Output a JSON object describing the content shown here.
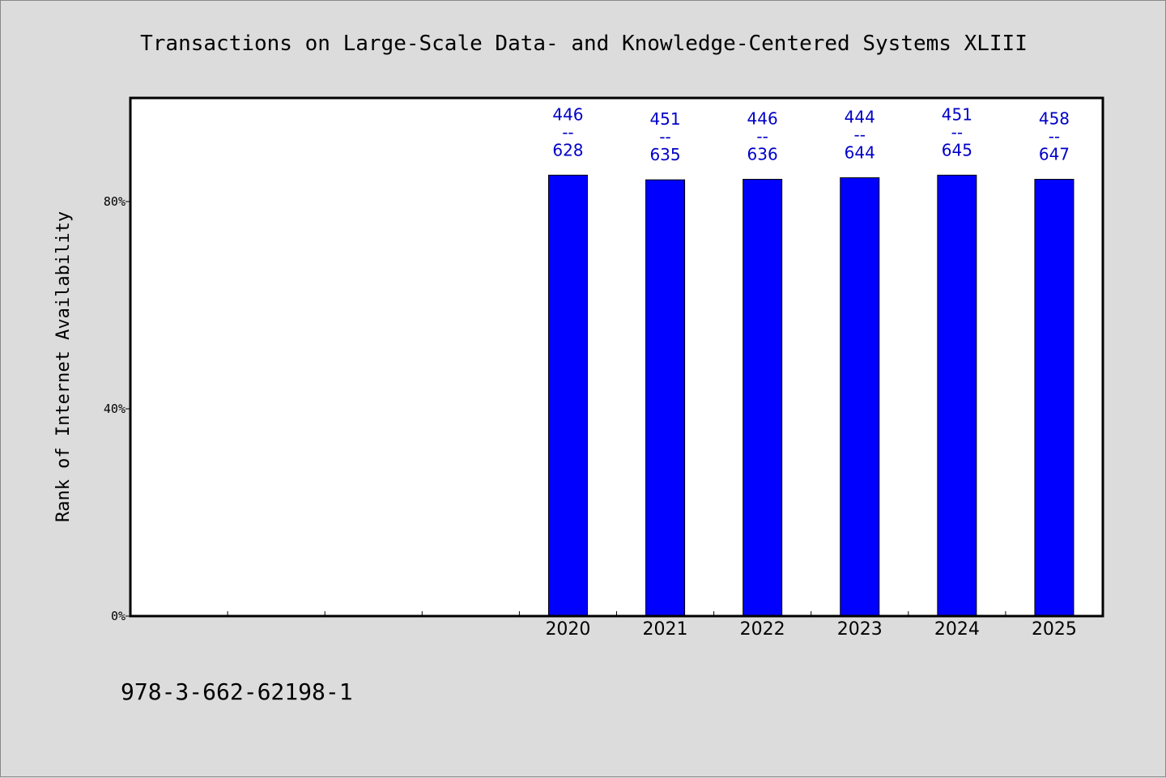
{
  "chart_data": {
    "type": "bar",
    "title": "Transactions on Large-Scale Data- and Knowledge-Centered Systems XLIII",
    "xlabel": "",
    "ylabel": "Rank of Internet Availability",
    "categories": [
      "",
      "",
      "",
      "",
      "2020",
      "2021",
      "2022",
      "2023",
      "2024",
      "2025"
    ],
    "values": [
      null,
      null,
      null,
      null,
      85.1,
      84.2,
      84.3,
      84.6,
      85.1,
      84.3
    ],
    "data_labels": [
      [
        "",
        "",
        ""
      ],
      [
        "",
        "",
        ""
      ],
      [
        "",
        "",
        ""
      ],
      [
        "",
        "",
        ""
      ],
      [
        "446",
        "--",
        "628"
      ],
      [
        "451",
        "--",
        "635"
      ],
      [
        "446",
        "--",
        "636"
      ],
      [
        "444",
        "--",
        "644"
      ],
      [
        "451",
        "--",
        "645"
      ],
      [
        "458",
        "--",
        "647"
      ]
    ],
    "ylim": [
      0,
      100
    ],
    "yticks": [
      0,
      40,
      80
    ],
    "ytick_labels": [
      "0%",
      "40%",
      "80%"
    ],
    "bar_color": "#0000ff",
    "label_color": "#0000c8",
    "grid": false,
    "legend": "none"
  },
  "footer": {
    "isbn": "978-3-662-62198-1"
  }
}
